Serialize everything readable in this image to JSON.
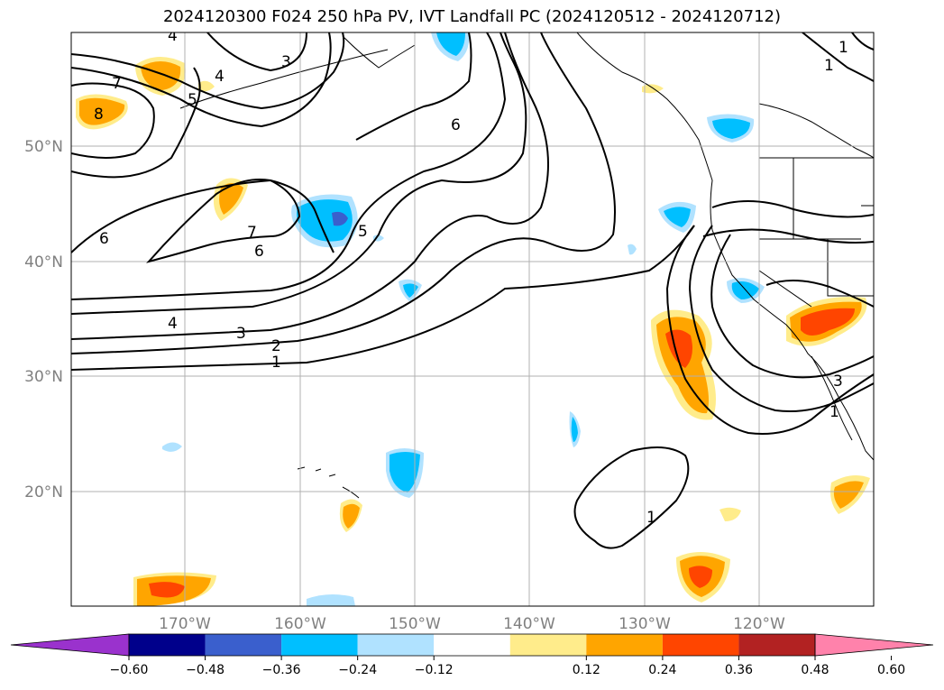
{
  "title": "2024120300 F024 250 hPa PV, IVT Landfall PC (2024120512 - 2024120712)",
  "lat_labels": [
    "50°N",
    "40°N",
    "30°N",
    "20°N"
  ],
  "lon_labels": [
    "170°W",
    "160°W",
    "150°W",
    "140°W",
    "130°W",
    "120°W"
  ],
  "contour_labels": [
    "4",
    "3",
    "7",
    "8",
    "4",
    "5",
    "6",
    "7",
    "6",
    "6",
    "5",
    "4",
    "3",
    "2",
    "1",
    "1",
    "1",
    "1",
    "3",
    "1"
  ],
  "colorbar": {
    "ticks": [
      "−0.60",
      "−0.48",
      "−0.36",
      "−0.24",
      "−0.12",
      "0.12",
      "0.24",
      "0.36",
      "0.48",
      "0.60"
    ],
    "colors": [
      "#9a32cd",
      "#00008b",
      "#3a5fcd",
      "#00bfff",
      "#b0e2ff",
      "#ffffff",
      "#ffec8b",
      "#ffa500",
      "#ff4500",
      "#b22222",
      "#ff82ab"
    ]
  },
  "colors": {
    "contour": "#000000",
    "grid": "#b0b0b0",
    "axis_text": "#808080"
  }
}
